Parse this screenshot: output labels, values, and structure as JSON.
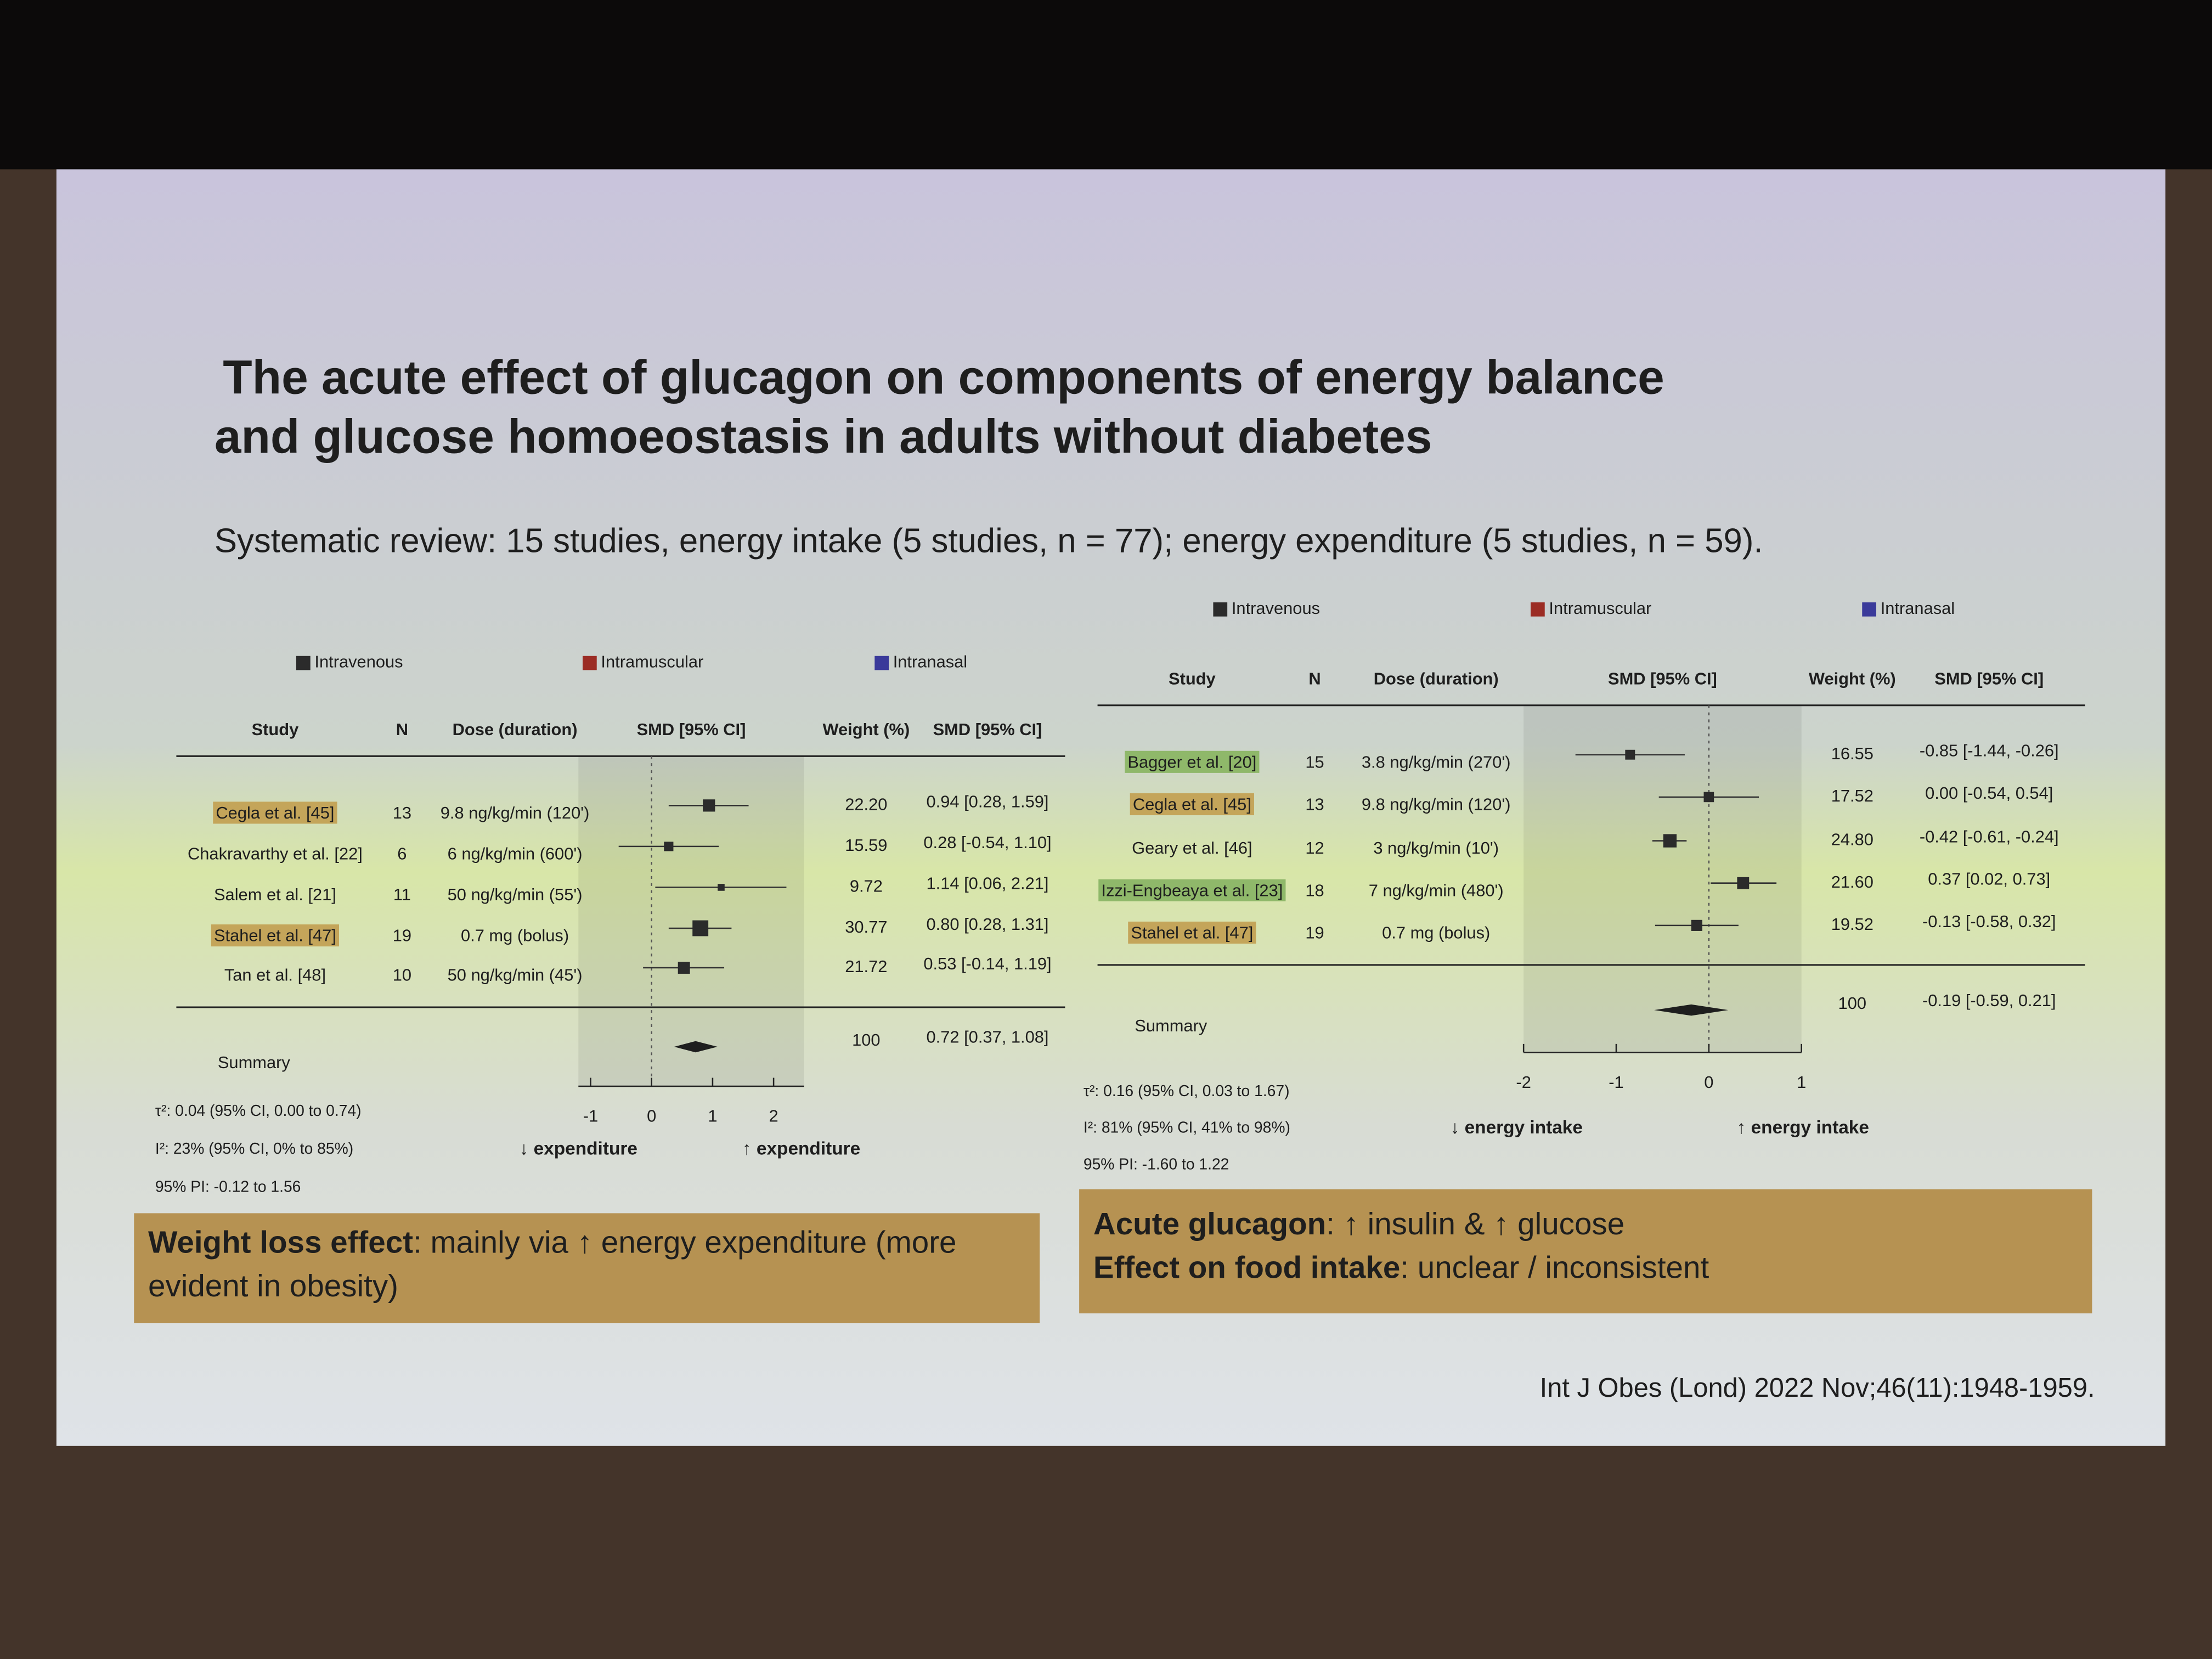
{
  "slide": {
    "title_lines": [
      "The acute effect of glucagon on components of energy balance",
      "and glucose homoeostasis in adults without diabetes"
    ],
    "subtitle": "Systematic review: 15 studies, energy intake (5 studies, n = 77); energy expenditure (5 studies, n = 59).",
    "left_box": [
      {
        "bold": "Weight loss effect",
        "text": ": mainly via ↑ energy expenditure (more evident in obesity)"
      }
    ],
    "right_box": [
      {
        "bold": "Acute glucagon",
        "text": ": ↑ insulin & ↑ glucose"
      },
      {
        "bold": "Effect on food intake",
        "text": ": unclear / inconsistent"
      }
    ],
    "citation": "Int J Obes (Lond) 2022 Nov;46(11):1948-1959."
  },
  "chart_data": [
    {
      "type": "forest",
      "legend": [
        {
          "name": "Intravenous",
          "color": "#2b2b2b"
        },
        {
          "name": "Intramuscular",
          "color": "#9b2c24"
        },
        {
          "name": "Intranasal",
          "color": "#3a3a9a"
        }
      ],
      "columns": {
        "study": "Study",
        "n": "N",
        "dose": "Dose (duration)",
        "plot": "SMD [95% CI]",
        "weight": "Weight (%)",
        "label": "SMD [95% CI]"
      },
      "categories": [
        "Cegla et al. [45]",
        "Chakravarthy et al. [22]",
        "Salem et al. [21]",
        "Stahel et al. [47]",
        "Tan et al. [48]"
      ],
      "highlights": [
        "#c4a55a",
        null,
        null,
        "#c4a55a",
        null
      ],
      "n": [
        13,
        6,
        11,
        19,
        10
      ],
      "dose": [
        "9.8 ng/kg/min (120')",
        "6 ng/kg/min (600')",
        "50 ng/kg/min (55')",
        "0.7 mg (bolus)",
        "50 ng/kg/min (45')"
      ],
      "weights": [
        22.2,
        15.59,
        9.72,
        30.77,
        21.72
      ],
      "weight_labels": [
        "22.20",
        "15.59",
        "9.72",
        "30.77",
        "21.72"
      ],
      "values": [
        0.94,
        0.28,
        1.14,
        0.8,
        0.53
      ],
      "lower": [
        0.28,
        -0.54,
        0.06,
        0.28,
        -0.14
      ],
      "upper": [
        1.59,
        1.1,
        2.21,
        1.31,
        1.19
      ],
      "value_labels": [
        "0.94 [0.28, 1.59]",
        "0.28 [-0.54, 1.10]",
        "1.14 [0.06, 2.21]",
        "0.80 [0.28, 1.31]",
        "0.53 [-0.14, 1.19]"
      ],
      "color": "#2b2b2b",
      "summary": {
        "label": "Summary",
        "weight": 100,
        "value": 0.72,
        "lower": 0.37,
        "upper": 1.08,
        "value_label": "0.72 [0.37, 1.08]"
      },
      "stats": [
        "τ²: 0.04 (95% CI, 0.00 to 0.74)",
        "I²: 23% (95% CI, 0% to 85%)",
        "95% PI: -0.12 to 1.56"
      ],
      "xlim": [
        -1.2,
        2.5
      ],
      "xticks": [
        -1,
        0,
        1,
        2
      ],
      "xlabels": [
        "↓ expenditure",
        "↑ expenditure"
      ]
    },
    {
      "type": "forest",
      "legend": [
        {
          "name": "Intravenous",
          "color": "#2b2b2b"
        },
        {
          "name": "Intramuscular",
          "color": "#9b2c24"
        },
        {
          "name": "Intranasal",
          "color": "#3a3a9a"
        }
      ],
      "columns": {
        "study": "Study",
        "n": "N",
        "dose": "Dose (duration)",
        "plot": "SMD [95% CI]",
        "weight": "Weight (%)",
        "label": "SMD [95% CI]"
      },
      "categories": [
        "Bagger et al. [20]",
        "Cegla et al. [45]",
        "Geary et al. [46]",
        "Izzi-Engbeaya et al. [23]",
        "Stahel et al. [47]"
      ],
      "highlights": [
        "#8fb86a",
        "#c4a55a",
        null,
        "#8fb86a",
        "#c4a55a"
      ],
      "n": [
        15,
        13,
        12,
        18,
        19
      ],
      "dose": [
        "3.8 ng/kg/min (270')",
        "9.8 ng/kg/min (120')",
        "3 ng/kg/min (10')",
        "7 ng/kg/min (480')",
        "0.7 mg (bolus)"
      ],
      "weights": [
        16.55,
        17.52,
        24.8,
        21.6,
        19.52
      ],
      "weight_labels": [
        "16.55",
        "17.52",
        "24.80",
        "21.60",
        "19.52"
      ],
      "values": [
        -0.85,
        0,
        -0.42,
        0.37,
        -0.13
      ],
      "lower": [
        -1.44,
        -0.54,
        -0.61,
        0.02,
        -0.58
      ],
      "upper": [
        -0.26,
        0.54,
        -0.24,
        0.73,
        0.32
      ],
      "value_labels": [
        "-0.85 [-1.44, -0.26]",
        "0.00 [-0.54, 0.54]",
        "-0.42 [-0.61, -0.24]",
        "0.37 [0.02, 0.73]",
        "-0.13 [-0.58, 0.32]"
      ],
      "color": "#2b2b2b",
      "summary": {
        "label": "Summary",
        "weight": 100,
        "value": -0.19,
        "lower": -0.59,
        "upper": 0.21,
        "value_label": "-0.19 [-0.59, 0.21]"
      },
      "stats": [
        "τ²: 0.16 (95% CI, 0.03 to 1.67)",
        "I²: 81% (95% CI, 41% to 98%)",
        "95% PI: -1.60 to 1.22"
      ],
      "xlim": [
        -2,
        1
      ],
      "xticks": [
        -2,
        -1,
        0,
        1
      ],
      "xlabels": [
        "↓ energy intake",
        "↑ energy intake"
      ]
    }
  ]
}
